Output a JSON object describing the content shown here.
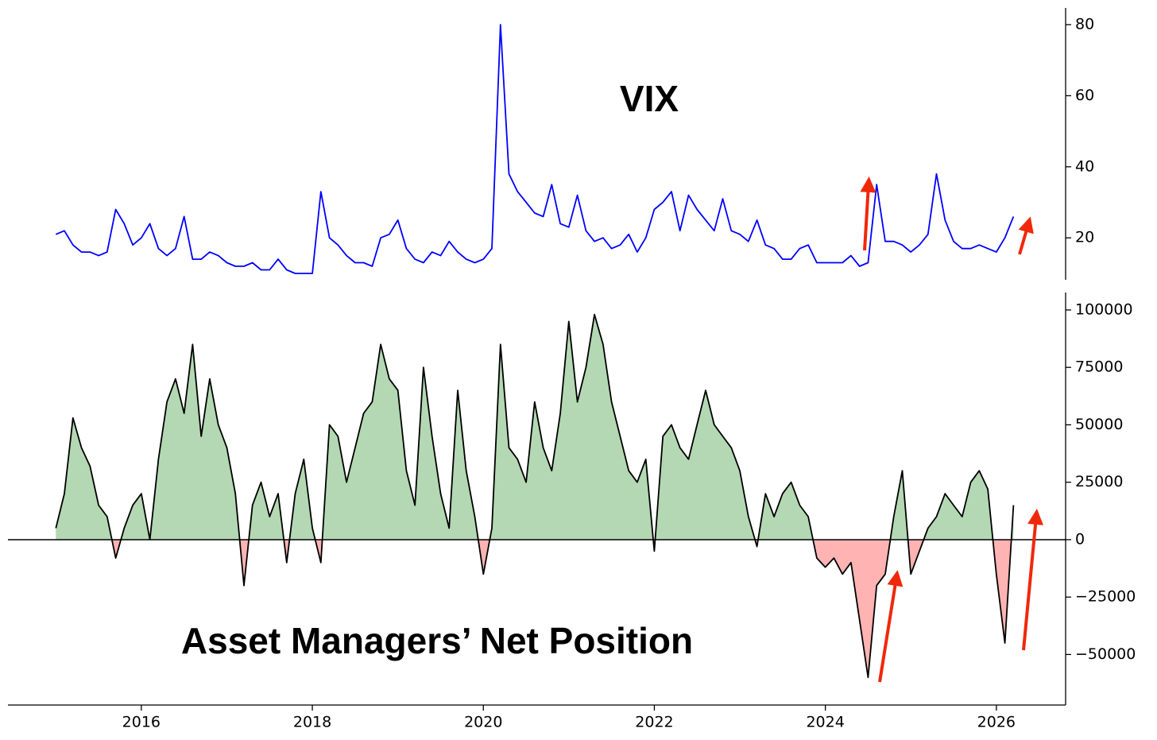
{
  "chart_data": [
    {
      "type": "line",
      "title": "VIX",
      "title_color": "#f0280a",
      "color": "#0000ff",
      "x": [
        2015.0,
        2015.1,
        2015.2,
        2015.3,
        2015.4,
        2015.5,
        2015.6,
        2015.7,
        2015.8,
        2015.9,
        2016.0,
        2016.1,
        2016.2,
        2016.3,
        2016.4,
        2016.5,
        2016.6,
        2016.7,
        2016.8,
        2016.9,
        2017.0,
        2017.1,
        2017.2,
        2017.3,
        2017.4,
        2017.5,
        2017.6,
        2017.7,
        2017.8,
        2017.9,
        2018.0,
        2018.1,
        2018.2,
        2018.3,
        2018.4,
        2018.5,
        2018.6,
        2018.7,
        2018.8,
        2018.9,
        2019.0,
        2019.1,
        2019.2,
        2019.3,
        2019.4,
        2019.5,
        2019.6,
        2019.7,
        2019.8,
        2019.9,
        2020.0,
        2020.1,
        2020.2,
        2020.3,
        2020.4,
        2020.5,
        2020.6,
        2020.7,
        2020.8,
        2020.9,
        2021.0,
        2021.1,
        2021.2,
        2021.3,
        2021.4,
        2021.5,
        2021.6,
        2021.7,
        2021.8,
        2021.9,
        2022.0,
        2022.1,
        2022.2,
        2022.3,
        2022.4,
        2022.5,
        2022.6,
        2022.7,
        2022.8,
        2022.9,
        2023.0,
        2023.1,
        2023.2,
        2023.3,
        2023.4,
        2023.5,
        2023.6,
        2023.7,
        2023.8,
        2023.9,
        2024.0,
        2024.1,
        2024.2,
        2024.3,
        2024.4,
        2024.5,
        2024.6,
        2024.7,
        2024.8,
        2024.9,
        2025.0,
        2025.1,
        2025.2,
        2025.3,
        2025.4,
        2025.5,
        2025.6,
        2025.7,
        2025.8,
        2025.9,
        2026.0,
        2026.1,
        2026.2
      ],
      "values": [
        21,
        22,
        18,
        16,
        16,
        15,
        16,
        28,
        24,
        18,
        20,
        24,
        17,
        15,
        17,
        26,
        14,
        14,
        16,
        15,
        13,
        12,
        12,
        13,
        11,
        11,
        14,
        11,
        10,
        10,
        10,
        33,
        20,
        18,
        15,
        13,
        13,
        12,
        20,
        21,
        25,
        17,
        14,
        13,
        16,
        15,
        19,
        16,
        14,
        13,
        14,
        17,
        80,
        38,
        33,
        30,
        27,
        26,
        35,
        24,
        23,
        32,
        22,
        19,
        20,
        17,
        18,
        21,
        16,
        20,
        28,
        30,
        33,
        22,
        32,
        28,
        25,
        22,
        31,
        22,
        21,
        19,
        25,
        18,
        17,
        14,
        14,
        17,
        18,
        13,
        13,
        13,
        13,
        15,
        12,
        13,
        35,
        19,
        19,
        18,
        16,
        18,
        21,
        38,
        25,
        19,
        17,
        17,
        18,
        17,
        16,
        20,
        26
      ],
      "xlim": [
        2014.44,
        2026.81
      ],
      "ylim": [
        8.2,
        84.7
      ],
      "yticks": [
        20,
        40,
        60,
        80
      ]
    },
    {
      "type": "area",
      "title": "Asset Managers’ Net Position",
      "title_color": "#f0280a",
      "color": "#000000",
      "positive_color": "#b3d8b3",
      "negative_color": "#ffb3b3",
      "x": [
        2015.0,
        2015.1,
        2015.2,
        2015.3,
        2015.4,
        2015.5,
        2015.6,
        2015.7,
        2015.8,
        2015.9,
        2016.0,
        2016.1,
        2016.2,
        2016.3,
        2016.4,
        2016.5,
        2016.6,
        2016.7,
        2016.8,
        2016.9,
        2017.0,
        2017.1,
        2017.2,
        2017.3,
        2017.4,
        2017.5,
        2017.6,
        2017.7,
        2017.8,
        2017.9,
        2018.0,
        2018.1,
        2018.2,
        2018.3,
        2018.4,
        2018.5,
        2018.6,
        2018.7,
        2018.8,
        2018.9,
        2019.0,
        2019.1,
        2019.2,
        2019.3,
        2019.4,
        2019.5,
        2019.6,
        2019.7,
        2019.8,
        2019.9,
        2020.0,
        2020.1,
        2020.2,
        2020.3,
        2020.4,
        2020.5,
        2020.6,
        2020.7,
        2020.8,
        2020.9,
        2021.0,
        2021.1,
        2021.2,
        2021.3,
        2021.4,
        2021.5,
        2021.6,
        2021.7,
        2021.8,
        2021.9,
        2022.0,
        2022.1,
        2022.2,
        2022.3,
        2022.4,
        2022.5,
        2022.6,
        2022.7,
        2022.8,
        2022.9,
        2023.0,
        2023.1,
        2023.2,
        2023.3,
        2023.4,
        2023.5,
        2023.6,
        2023.7,
        2023.8,
        2023.9,
        2024.0,
        2024.1,
        2024.2,
        2024.3,
        2024.4,
        2024.5,
        2024.6,
        2024.7,
        2024.8,
        2024.9,
        2025.0,
        2025.1,
        2025.2,
        2025.3,
        2025.4,
        2025.5,
        2025.6,
        2025.7,
        2025.8,
        2025.9,
        2026.0,
        2026.1,
        2026.2
      ],
      "values": [
        5000,
        20000,
        53000,
        40000,
        32000,
        15000,
        10000,
        -8000,
        5000,
        15000,
        20000,
        0,
        35000,
        60000,
        70000,
        55000,
        85000,
        45000,
        70000,
        50000,
        40000,
        20000,
        -20000,
        15000,
        25000,
        10000,
        20000,
        -10000,
        20000,
        35000,
        5000,
        -10000,
        50000,
        45000,
        25000,
        40000,
        55000,
        60000,
        85000,
        70000,
        65000,
        30000,
        15000,
        75000,
        45000,
        20000,
        5000,
        65000,
        30000,
        10000,
        -15000,
        5000,
        85000,
        40000,
        35000,
        25000,
        60000,
        40000,
        30000,
        55000,
        95000,
        60000,
        75000,
        98000,
        85000,
        60000,
        45000,
        30000,
        25000,
        35000,
        -5000,
        45000,
        50000,
        40000,
        35000,
        50000,
        65000,
        50000,
        45000,
        40000,
        30000,
        10000,
        -3000,
        20000,
        10000,
        20000,
        25000,
        15000,
        10000,
        -8000,
        -12000,
        -8000,
        -15000,
        -10000,
        -35000,
        -60000,
        -20000,
        -15000,
        10000,
        30000,
        -15000,
        -5000,
        5000,
        10000,
        20000,
        15000,
        10000,
        25000,
        30000,
        22000,
        -15000,
        -45000,
        15000
      ],
      "xlim": [
        2014.44,
        2026.81
      ],
      "ylim": [
        -72000,
        107600
      ],
      "yticks": [
        {
          "value": -50000,
          "label": "−50000"
        },
        {
          "value": -25000,
          "label": "−25000"
        },
        0,
        25000,
        50000,
        75000,
        100000
      ],
      "xticks": [
        2016,
        2018,
        2020,
        2022,
        2024,
        2026
      ]
    }
  ]
}
